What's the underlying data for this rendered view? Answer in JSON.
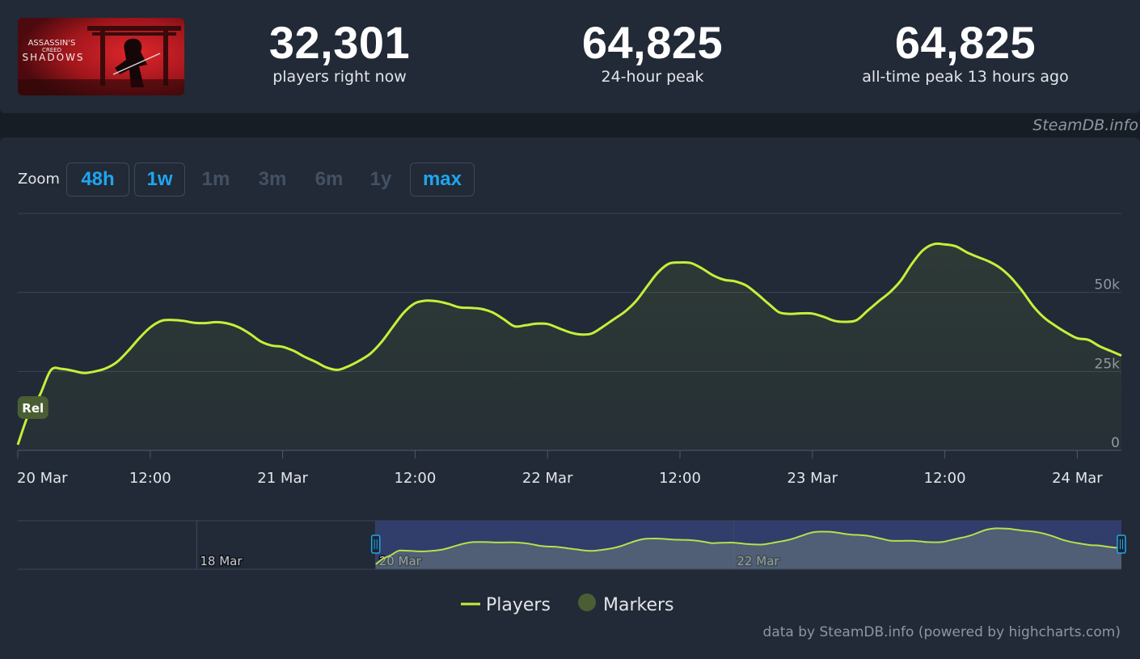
{
  "game": {
    "logo_line1": "ASSASSIN'S",
    "logo_line2": "CREED",
    "logo_line3": "SHADOWS"
  },
  "stats": [
    {
      "value": "32,301",
      "label": "players right now"
    },
    {
      "value": "64,825",
      "label": "24-hour peak"
    },
    {
      "value": "64,825",
      "label": "all-time peak 13 hours ago"
    }
  ],
  "watermark": "SteamDB.info",
  "zoom": {
    "label": "Zoom",
    "buttons": [
      {
        "label": "48h",
        "enabled": true
      },
      {
        "label": "1w",
        "enabled": true
      },
      {
        "label": "1m",
        "enabled": false
      },
      {
        "label": "3m",
        "enabled": false
      },
      {
        "label": "6m",
        "enabled": false
      },
      {
        "label": "1y",
        "enabled": false
      },
      {
        "label": "max",
        "enabled": true
      }
    ]
  },
  "colors": {
    "line": "#c4f03a",
    "marker": "#4a5e33",
    "grid": "#394656",
    "navigator_selection": "#333e6e"
  },
  "chart_data": {
    "type": "area",
    "x_unit": "hours since 20 Mar 00:00",
    "xlim": [
      0,
      100
    ],
    "ylim": [
      0,
      75000
    ],
    "yticks": [
      0,
      25000,
      50000
    ],
    "ytick_labels": [
      "0",
      "25k",
      "50k"
    ],
    "xtick_positions": [
      0,
      12,
      24,
      36,
      48,
      60,
      72,
      84,
      96
    ],
    "xtick_labels": [
      "20 Mar",
      "12:00",
      "21 Mar",
      "12:00",
      "22 Mar",
      "12:00",
      "23 Mar",
      "12:00",
      "24 Mar"
    ],
    "series": [
      {
        "name": "Players",
        "x": [
          0,
          1,
          2,
          3,
          4,
          5,
          6,
          7,
          8,
          9,
          10,
          11,
          12,
          13,
          14,
          15,
          16,
          17,
          18,
          19,
          20,
          21,
          22,
          23,
          24,
          25,
          26,
          27,
          28,
          29,
          30,
          31,
          32,
          33,
          34,
          35,
          36,
          37,
          38,
          39,
          40,
          41,
          42,
          43,
          44,
          45,
          46,
          47,
          48,
          49,
          50,
          51,
          52,
          53,
          54,
          55,
          56,
          57,
          58,
          59,
          60,
          61,
          62,
          63,
          64,
          65,
          66,
          67,
          68,
          69,
          70,
          71,
          72,
          73,
          74,
          75,
          76,
          77,
          78,
          79,
          80,
          81,
          82,
          83,
          84,
          85,
          86,
          87,
          88,
          89,
          90,
          91,
          92,
          93,
          94,
          95,
          96,
          97,
          98,
          99,
          100
        ],
        "values": [
          1800,
          11700,
          17500,
          25400,
          25800,
          25200,
          24500,
          25000,
          26000,
          28000,
          31500,
          35500,
          38900,
          41000,
          41300,
          41000,
          40400,
          40300,
          40600,
          40200,
          39000,
          37000,
          34500,
          33200,
          32800,
          31500,
          29600,
          28000,
          26200,
          25500,
          26700,
          28500,
          30800,
          34500,
          39200,
          43700,
          46600,
          47400,
          47200,
          46400,
          45300,
          45100,
          44800,
          43700,
          41600,
          39300,
          39600,
          40100,
          40000,
          38700,
          37400,
          36700,
          37000,
          39100,
          41500,
          43900,
          47200,
          51800,
          56300,
          59100,
          59500,
          59300,
          57600,
          55400,
          54000,
          53500,
          52200,
          49500,
          46500,
          43700,
          43200,
          43400,
          43300,
          42300,
          41000,
          40700,
          41200,
          44200,
          47200,
          50000,
          53700,
          59000,
          63300,
          65300,
          65200,
          64600,
          62700,
          61200,
          59800,
          57800,
          54700,
          50500,
          45700,
          42000,
          39500,
          37300,
          35500,
          35000,
          33000,
          31500,
          30000
        ]
      }
    ],
    "markers": [
      {
        "x": 1.3,
        "label": "Rel"
      }
    ],
    "legend": [
      "Players",
      "Markers"
    ],
    "navigator": {
      "range_start_hours": -48,
      "labels": [
        {
          "x": -24,
          "label": "18 Mar"
        },
        {
          "x": 0,
          "label": "20 Mar"
        },
        {
          "x": 48,
          "label": "22 Mar"
        }
      ]
    }
  },
  "credits": "data by SteamDB.info (powered by highcharts.com)"
}
